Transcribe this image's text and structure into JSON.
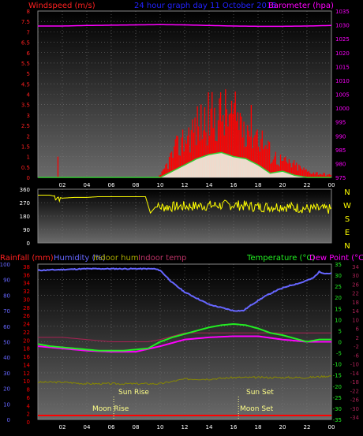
{
  "page_title": "24 hour graph day  11 October 2015",
  "top": {
    "left_label": "Windspeed (m/s)",
    "right_label": "Barometer (hpa)",
    "left_ticks": [
      "8",
      "7.5",
      "7",
      "6.5",
      "6",
      "5.5",
      "5",
      "4.5",
      "4",
      "3.5",
      "3",
      "2.5",
      "2",
      "1.5",
      "1",
      "0.5",
      "0"
    ],
    "right_ticks": [
      "1035",
      "1030",
      "1025",
      "1020",
      "1015",
      "1010",
      "1005",
      "1000",
      "995",
      "990",
      "985",
      "980",
      "975"
    ],
    "x_ticks": [
      "02",
      "04",
      "06",
      "08",
      "10",
      "12",
      "14",
      "16",
      "18",
      "20",
      "22",
      "00"
    ]
  },
  "mid": {
    "left_ticks": [
      "360",
      "270",
      "180",
      "90",
      "0"
    ],
    "compass": [
      "N",
      "W",
      "S",
      "E",
      "N"
    ]
  },
  "bottom": {
    "labels": {
      "rainfall": "Rainfall (mm)",
      "humidity": "Humidity (%)",
      "indoor_hum": "Indoor hum",
      "indoor_temp": "Indoor temp",
      "temperature": "Temperature (°C)",
      "dew_point": "Dew Point (°C)"
    },
    "left_ticks": [
      "100",
      "90",
      "80",
      "70",
      "60",
      "50",
      "40",
      "30",
      "20",
      "10",
      "0"
    ],
    "rain_ticks": [
      "38",
      "36",
      "34",
      "32",
      "30",
      "28",
      "26",
      "24",
      "22",
      "20",
      "18",
      "16",
      "14",
      "12",
      "10",
      "8",
      "6",
      "4",
      "2",
      "0"
    ],
    "temp_ticks": [
      "35",
      "30",
      "25",
      "20",
      "15",
      "10",
      "5",
      "0",
      "-5",
      "-10",
      "-15",
      "-20",
      "-25",
      "-30",
      "-35"
    ],
    "indoor_ticks": [
      "34",
      "30",
      "26",
      "22",
      "18",
      "14",
      "10",
      "6",
      "2",
      "-2",
      "-6",
      "-10",
      "-14",
      "-18",
      "-22",
      "-26",
      "-30",
      "-34"
    ],
    "sun_rise": "Sun Rise",
    "sun_set": "Sun Set",
    "moon_rise": "Moon Rise",
    "moon_set": "Moon Set",
    "x_ticks": [
      "02",
      "04",
      "06",
      "08",
      "10",
      "12",
      "14",
      "16",
      "18",
      "20",
      "22",
      "00"
    ]
  },
  "colors": {
    "wind_label": "#ff2020",
    "title": "#2222ff",
    "baro": "#ff00ff",
    "wind_bar": "#ff0000",
    "gust_fill": "#eeffee",
    "avg_wind": "#33cc33",
    "direction": "#ffff00",
    "humidity": "#6666ff",
    "temperature": "#22ee22",
    "dew": "#ff00ff",
    "indoor_temp": "#aa2255",
    "indoor_hum": "#888800",
    "rain": "#ff0000"
  },
  "chart_data": [
    {
      "type": "line",
      "title": "24 hour graph day  11 October 2015",
      "series": [
        {
          "name": "Barometer (hpa)",
          "unit": "hpa",
          "x": [
            0,
            2,
            4,
            6,
            8,
            10,
            12,
            14,
            16,
            18,
            20,
            22,
            24
          ],
          "values": [
            1029.6,
            1029.6,
            1029.8,
            1029.9,
            1030.0,
            1030.1,
            1030.0,
            1029.8,
            1029.6,
            1029.5,
            1029.5,
            1029.6,
            1029.8
          ]
        },
        {
          "name": "Windspeed (m/s)",
          "unit": "m/s",
          "x": [
            0,
            2,
            4,
            6,
            8,
            9.5,
            10,
            11,
            12,
            13,
            14,
            15,
            16,
            17,
            18,
            19,
            20,
            21,
            22,
            23,
            24
          ],
          "values": [
            0,
            0,
            0,
            0,
            0,
            0,
            0.1,
            1.2,
            2.0,
            2.6,
            3.0,
            3.2,
            3.0,
            2.8,
            2.2,
            1.2,
            0.8,
            0.6,
            0.3,
            0.2,
            0.1
          ]
        },
        {
          "name": "Average wind",
          "unit": "m/s",
          "x": [
            0,
            10,
            11,
            12,
            13,
            14,
            15,
            16,
            17,
            18,
            19,
            20,
            21,
            22,
            24
          ],
          "values": [
            0,
            0,
            0.3,
            0.6,
            0.9,
            1.1,
            1.2,
            1.0,
            0.9,
            0.6,
            0.2,
            0.3,
            0.1,
            0,
            0
          ]
        }
      ],
      "ylim_left": [
        0,
        8
      ],
      "ylim_right": [
        975,
        1035
      ]
    },
    {
      "type": "line",
      "series": [
        {
          "name": "Wind direction",
          "unit": "deg",
          "x": [
            0,
            0.5,
            1,
            2,
            3,
            4,
            5,
            6,
            7,
            8,
            8.8,
            9.2,
            9.6,
            10,
            12,
            14,
            16,
            18,
            20,
            22,
            24
          ],
          "values": [
            320,
            320,
            320,
            300,
            305,
            305,
            310,
            310,
            310,
            310,
            310,
            200,
            240,
            240,
            245,
            250,
            255,
            240,
            245,
            230,
            225
          ]
        }
      ],
      "ylim": [
        0,
        360
      ]
    },
    {
      "type": "line",
      "series": [
        {
          "name": "Humidity (%)",
          "unit": "%",
          "x": [
            0,
            2,
            4,
            6,
            8,
            9.5,
            10,
            11,
            12,
            13,
            14,
            15,
            16,
            16.8,
            17.5,
            18.5,
            19.5,
            20.5,
            21.5,
            22.5,
            23,
            23.5,
            24
          ],
          "values": [
            96,
            96.5,
            97,
            97,
            97,
            97,
            96,
            88,
            82,
            78,
            74,
            72,
            70,
            70,
            74,
            79,
            83,
            86,
            88,
            91,
            95,
            94,
            94
          ]
        },
        {
          "name": "Temperature (°C)",
          "unit": "°C",
          "x": [
            0,
            1,
            2,
            3,
            4,
            5,
            6,
            7,
            8,
            9,
            10,
            11,
            12,
            13,
            14,
            15,
            16,
            17,
            18,
            19,
            20,
            21,
            22,
            23,
            24
          ],
          "values": [
            -1,
            -2,
            -2.5,
            -3,
            -3.5,
            -4,
            -4,
            -4,
            -3.5,
            -3,
            0,
            2,
            3.5,
            5,
            6.5,
            7.5,
            8,
            7.5,
            6,
            4,
            3,
            1.5,
            0,
            1,
            1
          ]
        },
        {
          "name": "Dew Point (°C)",
          "unit": "°C",
          "x": [
            0,
            2,
            4,
            6,
            8,
            10,
            12,
            14,
            16,
            18,
            20,
            22,
            24
          ],
          "values": [
            -2,
            -3,
            -4,
            -4.5,
            -4.5,
            -2,
            1,
            2,
            2.5,
            2.5,
            1,
            0,
            0
          ]
        },
        {
          "name": "Indoor temp",
          "unit": "°C",
          "x": [
            0,
            2,
            4,
            6,
            8,
            9,
            10,
            12,
            14,
            16,
            18,
            20,
            22,
            24
          ],
          "values": [
            2,
            2,
            1,
            0,
            0,
            0,
            1,
            4,
            4,
            4,
            4,
            4,
            4,
            4
          ]
        },
        {
          "name": "Indoor hum",
          "unit": "%",
          "x": [
            0,
            2,
            4,
            6,
            8,
            10,
            12,
            14,
            16,
            18,
            20,
            22,
            24
          ],
          "values": [
            24,
            24,
            23,
            23,
            23,
            23,
            26,
            26,
            27,
            27,
            27,
            27,
            28
          ]
        },
        {
          "name": "Rainfall (mm)",
          "unit": "mm",
          "x": [
            0,
            24
          ],
          "values": [
            0,
            0
          ]
        }
      ],
      "ylim_left": [
        0,
        100
      ],
      "ylim_temp": [
        -35,
        35
      ]
    }
  ]
}
